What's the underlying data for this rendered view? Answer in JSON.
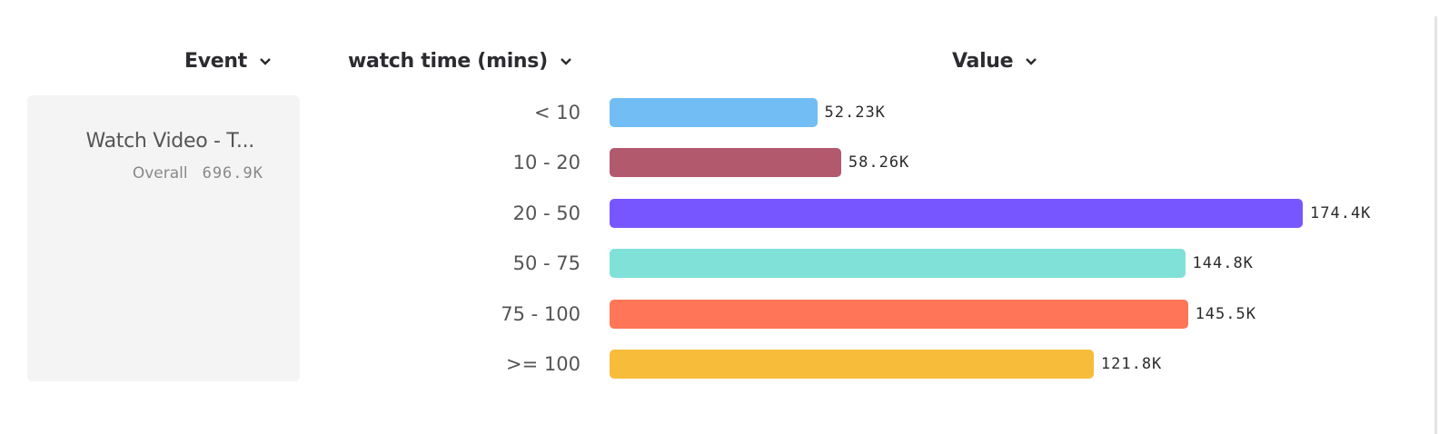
{
  "headers": {
    "event": "Event",
    "breakdown": "watch time (mins)",
    "value": "Value"
  },
  "event_card": {
    "name": "Watch Video - T...",
    "overall_label": "Overall",
    "overall_value": "696.9K"
  },
  "chart_data": {
    "type": "bar",
    "orientation": "horizontal",
    "categories": [
      "< 10",
      "10 - 20",
      "20 - 50",
      "50 - 75",
      "75 - 100",
      ">= 100"
    ],
    "values": [
      52230,
      58260,
      174400,
      144800,
      145500,
      121800
    ],
    "value_labels": [
      "52.23K",
      "58.26K",
      "174.4K",
      "144.8K",
      "145.5K",
      "121.8K"
    ],
    "colors": [
      "#72bef4",
      "#b2596e",
      "#7856ff",
      "#80e1d9",
      "#ff7557",
      "#f8bc3b"
    ],
    "xlabel": "",
    "ylabel": "",
    "grid": false
  }
}
